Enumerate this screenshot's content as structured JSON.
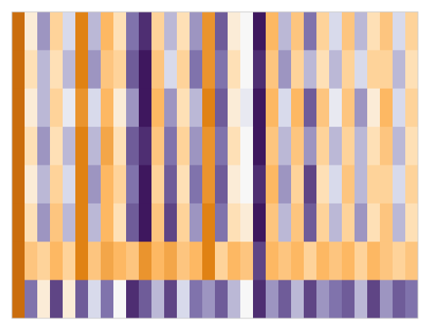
{
  "chart_data": {
    "type": "heatmap",
    "zlim": [
      -1,
      1
    ],
    "colors": [
      "#2d004b",
      "#8073ac",
      "#d8daeb",
      "#f7f7f7",
      "#fee0b6",
      "#fdb863",
      "#e08214",
      "#b35806"
    ],
    "color_stops": [
      -1,
      -0.5,
      -0.2,
      0,
      0.2,
      0.5,
      0.8,
      1
    ],
    "values": [
      [
        0.9,
        0.1,
        -0.4,
        0.3,
        -0.2,
        0.8,
        -0.3,
        0.5,
        0.2,
        -0.5,
        -0.8,
        0.3,
        -0.3,
        0.2,
        -0.4,
        0.7,
        -0.6,
        0.1,
        0.0,
        -0.9,
        0.5,
        -0.3,
        0.4,
        -0.5,
        0.3,
        -0.2,
        0.4,
        -0.3,
        0.2,
        0.4,
        -0.2,
        0.3
      ],
      [
        0.9,
        0.2,
        -0.3,
        0.2,
        -0.3,
        0.8,
        -0.4,
        0.4,
        0.3,
        -0.6,
        -0.9,
        0.4,
        -0.2,
        0.3,
        -0.5,
        0.7,
        -0.5,
        0.2,
        0.0,
        -0.8,
        0.4,
        -0.4,
        0.3,
        -0.3,
        0.2,
        -0.3,
        0.3,
        -0.2,
        0.3,
        0.3,
        -0.3,
        0.2
      ],
      [
        0.9,
        0.1,
        -0.3,
        0.3,
        -0.1,
        0.7,
        -0.2,
        0.5,
        0.1,
        -0.4,
        -0.9,
        0.5,
        -0.4,
        0.2,
        -0.3,
        0.8,
        -0.6,
        0.1,
        -0.1,
        -0.9,
        0.5,
        -0.2,
        0.5,
        -0.6,
        0.4,
        -0.1,
        0.4,
        -0.4,
        0.1,
        0.5,
        -0.2,
        0.3
      ],
      [
        0.9,
        0.2,
        -0.4,
        0.2,
        -0.3,
        0.8,
        -0.3,
        0.6,
        0.2,
        -0.6,
        -0.8,
        0.4,
        -0.5,
        0.3,
        -0.4,
        0.7,
        -0.5,
        0.2,
        0.0,
        -0.9,
        0.4,
        -0.3,
        0.4,
        -0.4,
        0.3,
        -0.3,
        0.3,
        -0.3,
        0.2,
        0.4,
        -0.3,
        0.2
      ],
      [
        0.9,
        0.1,
        -0.3,
        0.3,
        -0.2,
        0.8,
        -0.4,
        0.5,
        0.3,
        -0.5,
        -0.9,
        0.3,
        -0.6,
        0.2,
        -0.5,
        0.7,
        -0.6,
        0.1,
        0.0,
        -0.8,
        0.5,
        -0.4,
        0.3,
        -0.7,
        0.2,
        -0.2,
        0.4,
        -0.3,
        0.3,
        0.3,
        -0.2,
        0.3
      ],
      [
        0.9,
        0.2,
        -0.4,
        0.4,
        -0.3,
        0.8,
        -0.3,
        0.5,
        0.2,
        -0.6,
        -0.9,
        0.4,
        -0.7,
        0.3,
        -0.4,
        0.8,
        -0.5,
        0.2,
        0.1,
        -0.9,
        0.4,
        -0.3,
        0.4,
        -0.6,
        0.3,
        -0.3,
        0.3,
        -0.4,
        0.2,
        0.4,
        -0.3,
        0.2
      ],
      [
        0.9,
        0.4,
        0.3,
        0.5,
        0.3,
        0.8,
        0.4,
        0.6,
        0.5,
        0.4,
        0.7,
        0.5,
        0.6,
        0.4,
        0.5,
        0.8,
        0.3,
        0.5,
        0.4,
        -0.7,
        0.5,
        0.4,
        0.5,
        0.3,
        0.5,
        0.4,
        0.5,
        0.3,
        0.5,
        0.4,
        0.3,
        0.4
      ],
      [
        0.9,
        -0.5,
        0.1,
        -0.7,
        0.1,
        -0.6,
        -0.2,
        -0.5,
        0.0,
        -0.8,
        -0.6,
        -0.3,
        -0.7,
        -0.2,
        -0.5,
        -0.4,
        -0.6,
        -0.3,
        0.0,
        -0.8,
        -0.4,
        -0.6,
        -0.3,
        -0.7,
        -0.4,
        -0.5,
        -0.6,
        -0.3,
        -0.7,
        -0.4,
        -0.6,
        -0.5
      ]
    ]
  }
}
